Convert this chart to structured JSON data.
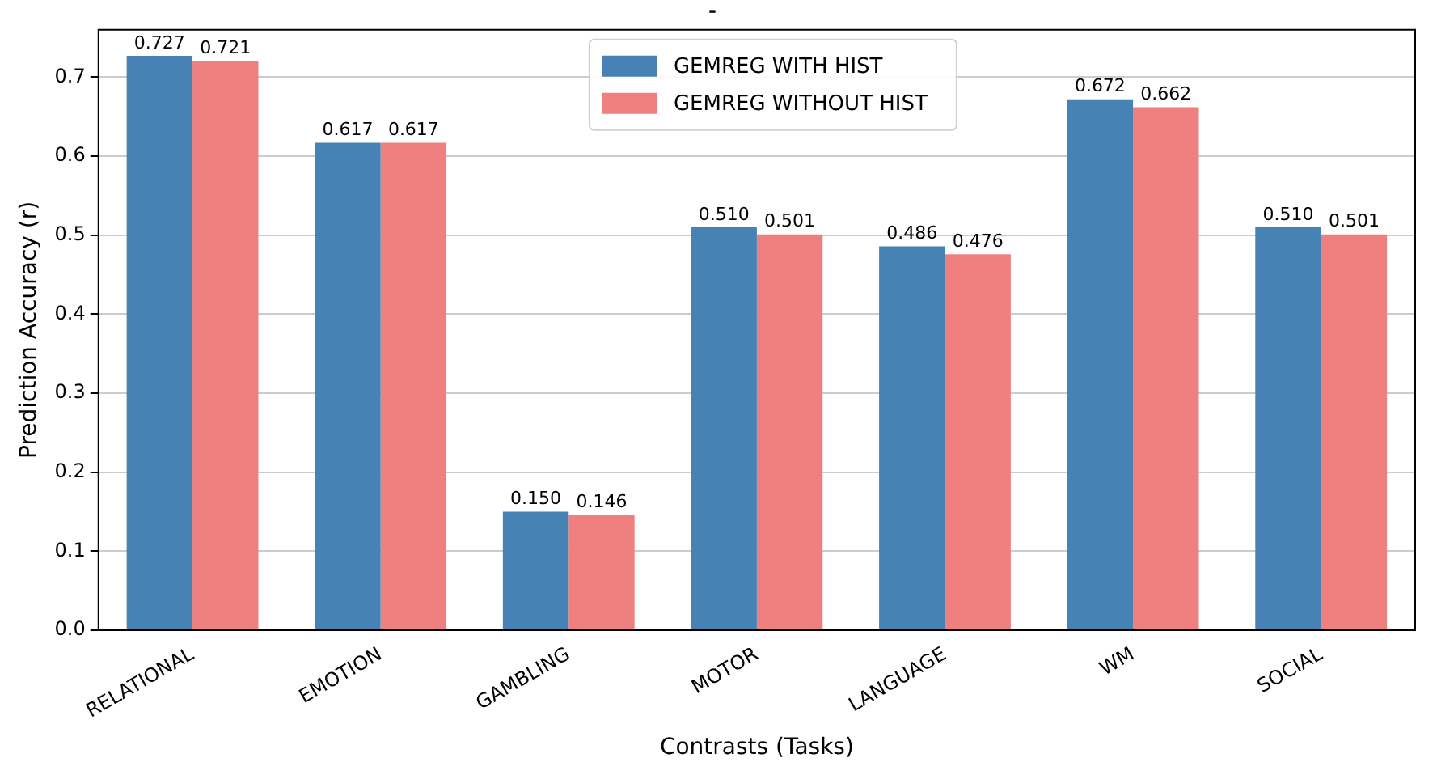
{
  "chart_data": {
    "type": "bar",
    "title": "-",
    "xlabel": "Contrasts (Tasks)",
    "ylabel": "Prediction Accuracy (r)",
    "categories": [
      "RELATIONAL",
      "EMOTION",
      "GAMBLING",
      "MOTOR",
      "LANGUAGE",
      "WM",
      "SOCIAL"
    ],
    "series": [
      {
        "name": "GEMREG WITH HIST",
        "color": "#4682b4",
        "values": [
          0.727,
          0.617,
          0.15,
          0.51,
          0.486,
          0.672,
          0.51
        ],
        "value_labels": [
          "0.727",
          "0.617",
          "0.150",
          "0.510",
          "0.486",
          "0.672",
          "0.510"
        ]
      },
      {
        "name": "GEMREG WITHOUT HIST",
        "color": "#f08080",
        "values": [
          0.721,
          0.617,
          0.146,
          0.501,
          0.476,
          0.662,
          0.501
        ],
        "value_labels": [
          "0.721",
          "0.617",
          "0.146",
          "0.501",
          "0.476",
          "0.662",
          "0.501"
        ]
      }
    ],
    "ylim": [
      0,
      0.76
    ],
    "yticks": [
      {
        "value": 0,
        "label": "0.0"
      },
      {
        "value": 0.1,
        "label": "0.1"
      },
      {
        "value": 0.2,
        "label": "0.2"
      },
      {
        "value": 0.3,
        "label": "0.3"
      },
      {
        "value": 0.4,
        "label": "0.4"
      },
      {
        "value": 0.5,
        "label": "0.5"
      },
      {
        "value": 0.6,
        "label": "0.6"
      },
      {
        "value": 0.7,
        "label": "0.7"
      }
    ],
    "grid": "y",
    "legend": "top"
  }
}
